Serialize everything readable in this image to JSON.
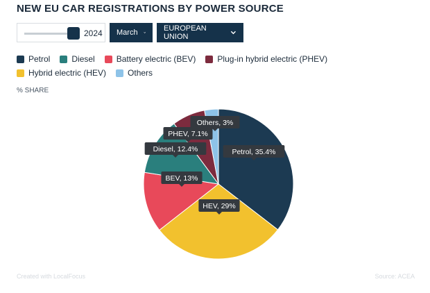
{
  "header": {
    "title": "NEW EU CAR REGISTRATIONS BY POWER SOURCE"
  },
  "controls": {
    "year": "2024",
    "month": "March",
    "region": "EUROPEAN UNION"
  },
  "unit_label": "% SHARE",
  "footer": {
    "credit": "Created with LocalFocus",
    "source": "Source: ACEA"
  },
  "colors": {
    "dark_navy": "#15324a",
    "tooltip": "#34393f"
  },
  "chart_data": {
    "type": "pie",
    "legend_position": "top",
    "categories": [
      "Petrol",
      "Diesel",
      "Battery electric (BEV)",
      "Plug-in hybrid electric (PHEV)",
      "Hybrid electric (HEV)",
      "Others"
    ],
    "values": [
      35.4,
      12.4,
      13,
      7.1,
      29,
      3
    ],
    "colors": [
      "#1c3a52",
      "#2a7f7d",
      "#e8495a",
      "#7d2b3e",
      "#f2c12e",
      "#8ec3e8"
    ],
    "slices": [
      {
        "name": "Petrol",
        "value": 35.4,
        "label": "Petrol, 35.4%",
        "color": "#1c3a52"
      },
      {
        "name": "HEV",
        "value": 29,
        "label": "HEV, 29%",
        "color": "#f2c12e"
      },
      {
        "name": "BEV",
        "value": 13,
        "label": "BEV, 13%",
        "color": "#e8495a"
      },
      {
        "name": "Diesel",
        "value": 12.4,
        "label": "Diesel, 12.4%",
        "color": "#2a7f7d"
      },
      {
        "name": "PHEV",
        "value": 7.1,
        "label": "PHEV, 7.1%",
        "color": "#7d2b3e"
      },
      {
        "name": "Others",
        "value": 3,
        "label": "Others, 3%",
        "color": "#8ec3e8"
      }
    ]
  }
}
